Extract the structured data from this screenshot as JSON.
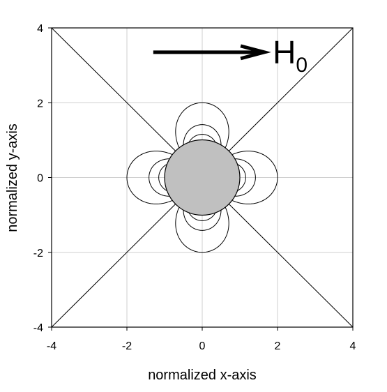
{
  "chart_data": {
    "type": "contour",
    "xlabel": "normalized x-axis",
    "ylabel": "normalized y-axis",
    "xlim": [
      -4,
      4
    ],
    "ylim": [
      -4,
      4
    ],
    "xticks": [
      -4,
      -2,
      0,
      2,
      4
    ],
    "yticks": [
      -4,
      -2,
      0,
      2,
      4
    ],
    "grid": true,
    "annotation": {
      "text": "H",
      "subscript": "0",
      "arrow_from": [
        -1.3,
        3.35
      ],
      "arrow_to": [
        1.65,
        3.35
      ]
    },
    "sphere": {
      "center": [
        0,
        0
      ],
      "radius": 1.0,
      "fill": "#c0c0c0"
    },
    "contours": {
      "pattern": "cos(2*theta)/r^2",
      "levels": [
        0.25,
        0.5,
        0.75,
        1.0,
        1.25,
        1.5,
        1.75,
        2.0,
        2.25,
        2.5,
        2.75,
        3.0
      ],
      "separatrix_angles_deg": [
        45,
        135,
        225,
        315
      ],
      "color": "#000000"
    },
    "colors": {
      "grid": "#cfcfcf",
      "lines": "#000000",
      "sphere": "#c0c0c0"
    }
  }
}
